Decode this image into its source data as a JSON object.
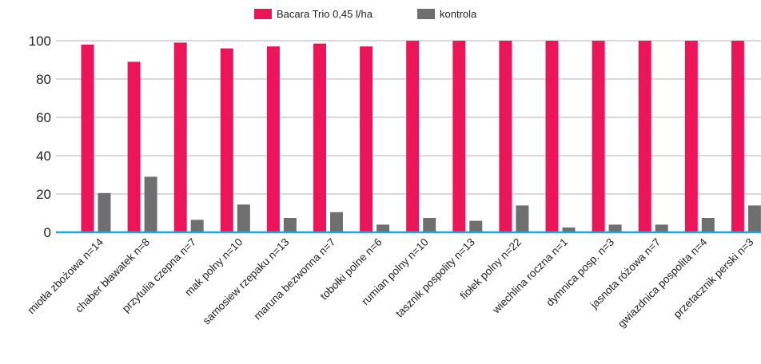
{
  "colors": {
    "series_primary": "#ec1559",
    "series_secondary": "#6f6f6f",
    "axis": "#1fa6dd",
    "grid": "#b3b3b3",
    "text": "#222222"
  },
  "chart_data": {
    "type": "bar",
    "title": "",
    "xlabel": "",
    "ylabel": "",
    "ylim": [
      0,
      100
    ],
    "yticks": [
      0,
      20,
      40,
      60,
      80,
      100
    ],
    "grid": true,
    "legend_position": "top-center",
    "categories": [
      "miotła zbożowa n=14",
      "chaber bławatek n=8",
      "przytulia czepna n=7",
      "mak polny n=10",
      "samosiew rzepaku n=13",
      "maruna bezwonna n=7",
      "tobołki polne n=6",
      "rumian polny n=10",
      "tasznik pospolity n=13",
      "fiołek polny n=22",
      "wiechlina roczna n=1",
      "dymnica posp. n=3",
      "jasnota różowa n=7",
      "gwiazdnica pospolita n=4",
      "przetacznik perski n=3"
    ],
    "series": [
      {
        "name": "Bacara Trio 0,45 l/ha",
        "values": [
          98,
          89,
          99,
          96,
          97,
          98.5,
          97,
          100,
          100,
          100,
          100,
          100,
          100,
          100,
          100
        ]
      },
      {
        "name": "kontrola",
        "values": [
          20.5,
          29,
          6.5,
          14.5,
          7.5,
          10.5,
          4,
          7.5,
          6,
          14,
          2.5,
          4,
          4,
          7.5,
          14
        ]
      }
    ]
  }
}
